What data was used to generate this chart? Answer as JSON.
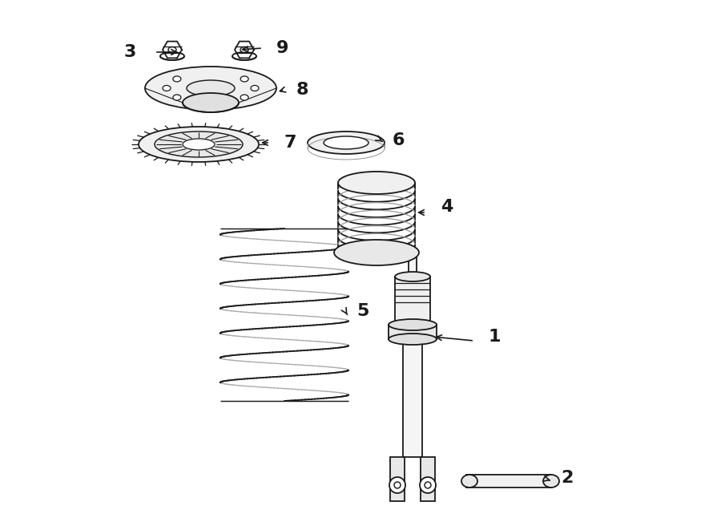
{
  "bg_color": "#ffffff",
  "line_color": "#1a1a1a",
  "lw": 1.3,
  "fig_width": 9.0,
  "fig_height": 6.61
}
